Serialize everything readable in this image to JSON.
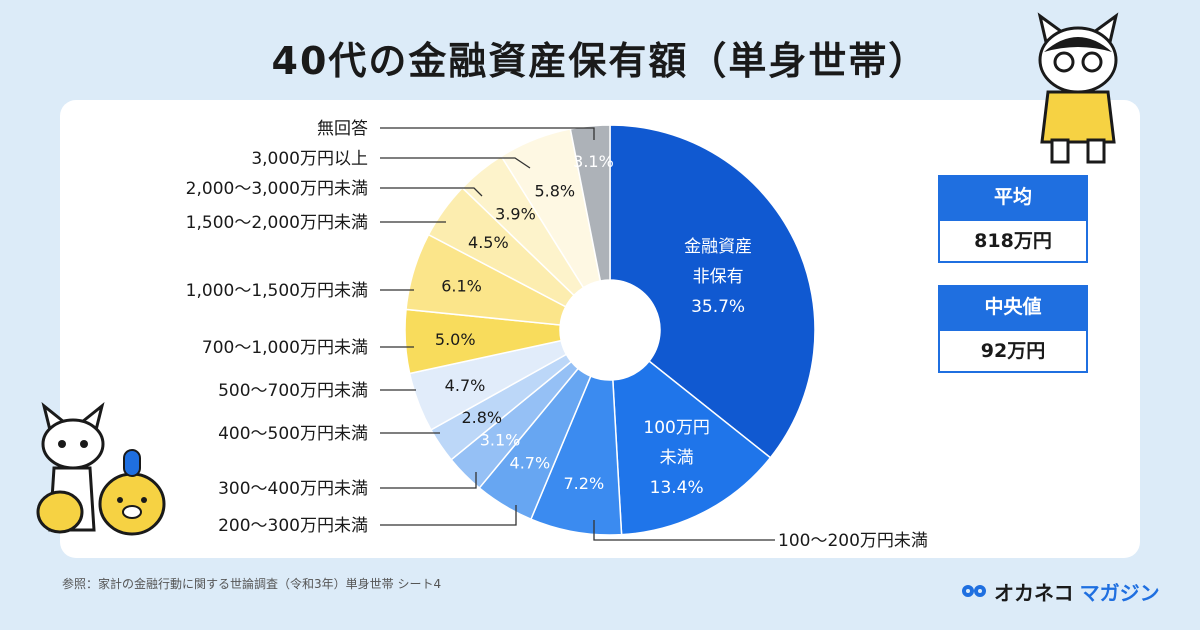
{
  "title": "40代の金融資産保有額（単身世帯）",
  "stats": {
    "average_label": "平均",
    "average_value": "818万円",
    "median_label": "中央値",
    "median_value": "92万円"
  },
  "source": "参照：家計の金融行動に関する世論調査（令和3年）単身世帯 シート4",
  "brand": {
    "prefix": "オカネコ",
    "suffix": "マガジン"
  },
  "colors": {
    "accent": "#1f6fe0",
    "background": "#dcebf8"
  },
  "chart_data": {
    "type": "pie",
    "title": "40代の金融資産保有額（単身世帯）",
    "donut": true,
    "slices": [
      {
        "label": "金融資産非保有",
        "value": 35.7,
        "value_label": "35.7%",
        "inner_lines": [
          "金融資産",
          "非保有",
          "35.7%"
        ],
        "color": "#1059d1"
      },
      {
        "label": "100万円未満",
        "value": 13.4,
        "value_label": "13.4%",
        "inner_lines": [
          "100万円",
          "未満",
          "13.4%"
        ],
        "color": "#1f75ea"
      },
      {
        "label": "100〜200万円未満",
        "value": 7.2,
        "value_label": "7.2%",
        "color": "#3b8bf0"
      },
      {
        "label": "200〜300万円未満",
        "value": 4.7,
        "value_label": "4.7%",
        "color": "#67a6f2"
      },
      {
        "label": "300〜400万円未満",
        "value": 3.1,
        "value_label": "3.1%",
        "color": "#95c0f5"
      },
      {
        "label": "400〜500万円未満",
        "value": 2.8,
        "value_label": "2.8%",
        "color": "#bcd7f8"
      },
      {
        "label": "500〜700万円未満",
        "value": 4.7,
        "value_label": "4.7%",
        "color": "#e1ecfa"
      },
      {
        "label": "700〜1,000万円未満",
        "value": 5.0,
        "value_label": "5.0%",
        "color": "#f8dc5c"
      },
      {
        "label": "1,000〜1,500万円未満",
        "value": 6.1,
        "value_label": "6.1%",
        "color": "#fbe58a"
      },
      {
        "label": "1,500〜2,000万円未満",
        "value": 4.5,
        "value_label": "4.5%",
        "color": "#fcedaf"
      },
      {
        "label": "2,000〜3,000万円未満",
        "value": 3.9,
        "value_label": "3.9%",
        "color": "#fdf3cb"
      },
      {
        "label": "3,000万円以上",
        "value": 5.8,
        "value_label": "5.8%",
        "color": "#fef8e3"
      },
      {
        "label": "無回答",
        "value": 3.1,
        "value_label": "3.1%",
        "color": "#adb2b8"
      }
    ]
  }
}
